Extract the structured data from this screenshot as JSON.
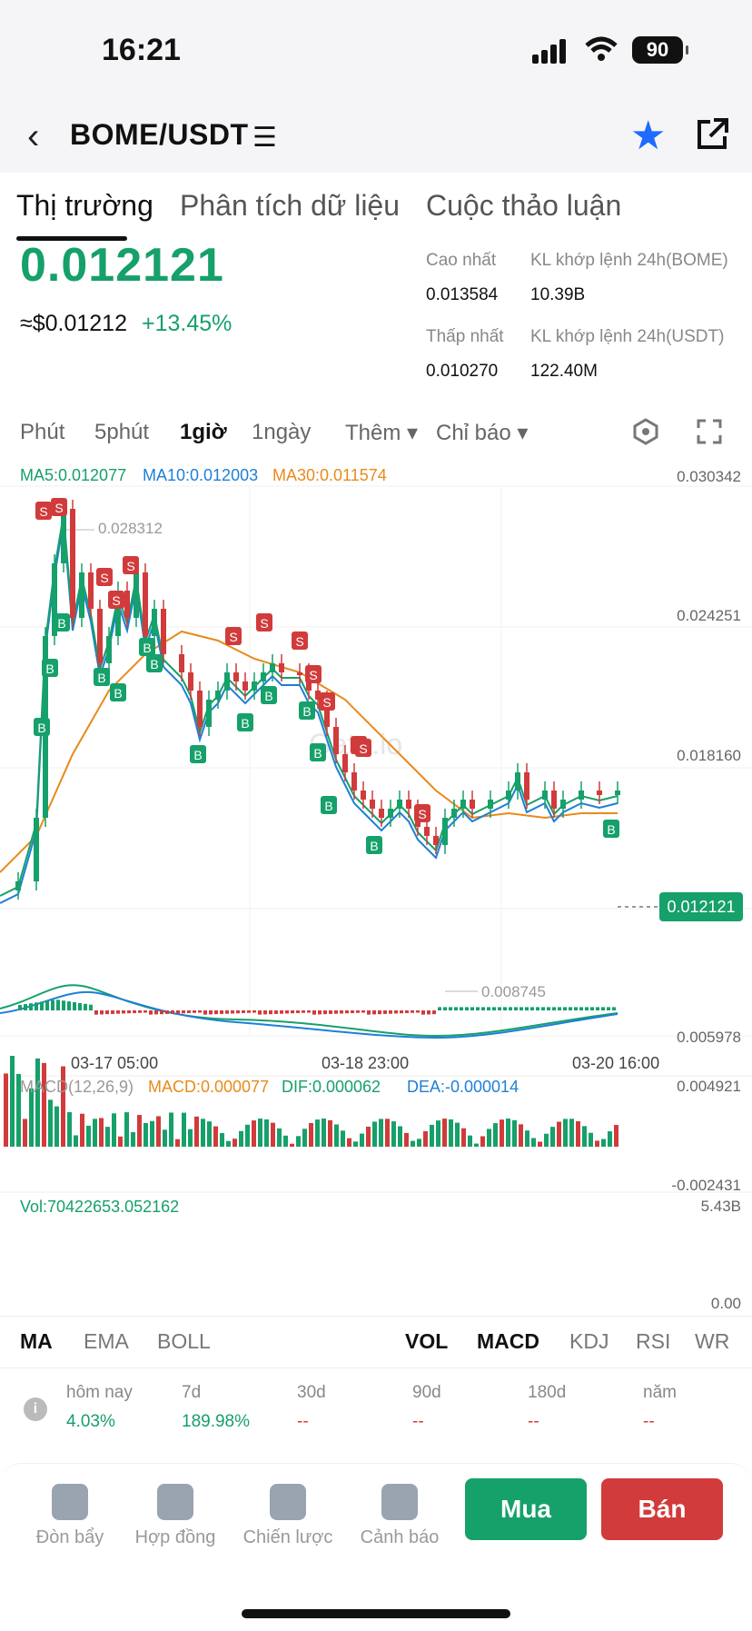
{
  "status": {
    "time": "16:21",
    "battery": "90"
  },
  "header": {
    "pair": "BOME/USDT"
  },
  "tabs": [
    "Thị trường",
    "Phân tích dữ liệu",
    "Cuộc thảo luận"
  ],
  "price": {
    "last": "0.012121",
    "usd": "≈$0.01212",
    "change": "+13.45%"
  },
  "stats": {
    "high_label": "Cao nhất",
    "high": "0.013584",
    "vol_base_label": "KL khớp lệnh 24h(BOME)",
    "vol_base": "10.39B",
    "low_label": "Thấp nhất",
    "low": "0.010270",
    "vol_quote_label": "KL khớp lệnh 24h(USDT)",
    "vol_quote": "122.40M"
  },
  "timeframes": [
    "Phút",
    "5phút",
    "1giờ",
    "1ngày",
    "Thêm ▾",
    "Chỉ báo ▾"
  ],
  "chart": {
    "ma5": "MA5:0.012077",
    "ma10": "MA10:0.012003",
    "ma30": "MA30:0.011574",
    "y_labels": [
      "0.030342",
      "0.024251",
      "0.018160",
      "0.012121",
      "0.005978"
    ],
    "high_mark": "0.028312",
    "low_mark": "0.008745",
    "current": "0.012121",
    "dates": [
      "03-17 05:00",
      "03-18 23:00",
      "03-20 16:00"
    ],
    "watermark": "Gate.io"
  },
  "macd": {
    "label": "MACD(12,26,9)",
    "macd": "MACD:0.000077",
    "dif": "DIF:0.000062",
    "dea": "DEA:-0.000014",
    "top": "0.004921",
    "bottom": "-0.002431"
  },
  "volume": {
    "label": "Vol:70422653.052162",
    "top": "5.43B",
    "bottom": "0.00"
  },
  "indicators_left": [
    "MA",
    "EMA",
    "BOLL"
  ],
  "indicators_right": [
    "VOL",
    "MACD",
    "KDJ",
    "RSI",
    "WR"
  ],
  "performance": [
    {
      "label": "hôm nay",
      "value": "4.03%"
    },
    {
      "label": "7d",
      "value": "189.98%"
    },
    {
      "label": "30d",
      "value": "--"
    },
    {
      "label": "90d",
      "value": "--"
    },
    {
      "label": "180d",
      "value": "--"
    },
    {
      "label": "năm",
      "value": "--"
    }
  ],
  "bottom": {
    "actions": [
      "Đòn bẩy",
      "Hợp đồng",
      "Chiến lược",
      "Cảnh báo"
    ],
    "buy": "Mua",
    "sell": "Bán"
  },
  "colors": {
    "up": "#16a06a",
    "down": "#d13b3b",
    "accent": "#1f6bff"
  }
}
